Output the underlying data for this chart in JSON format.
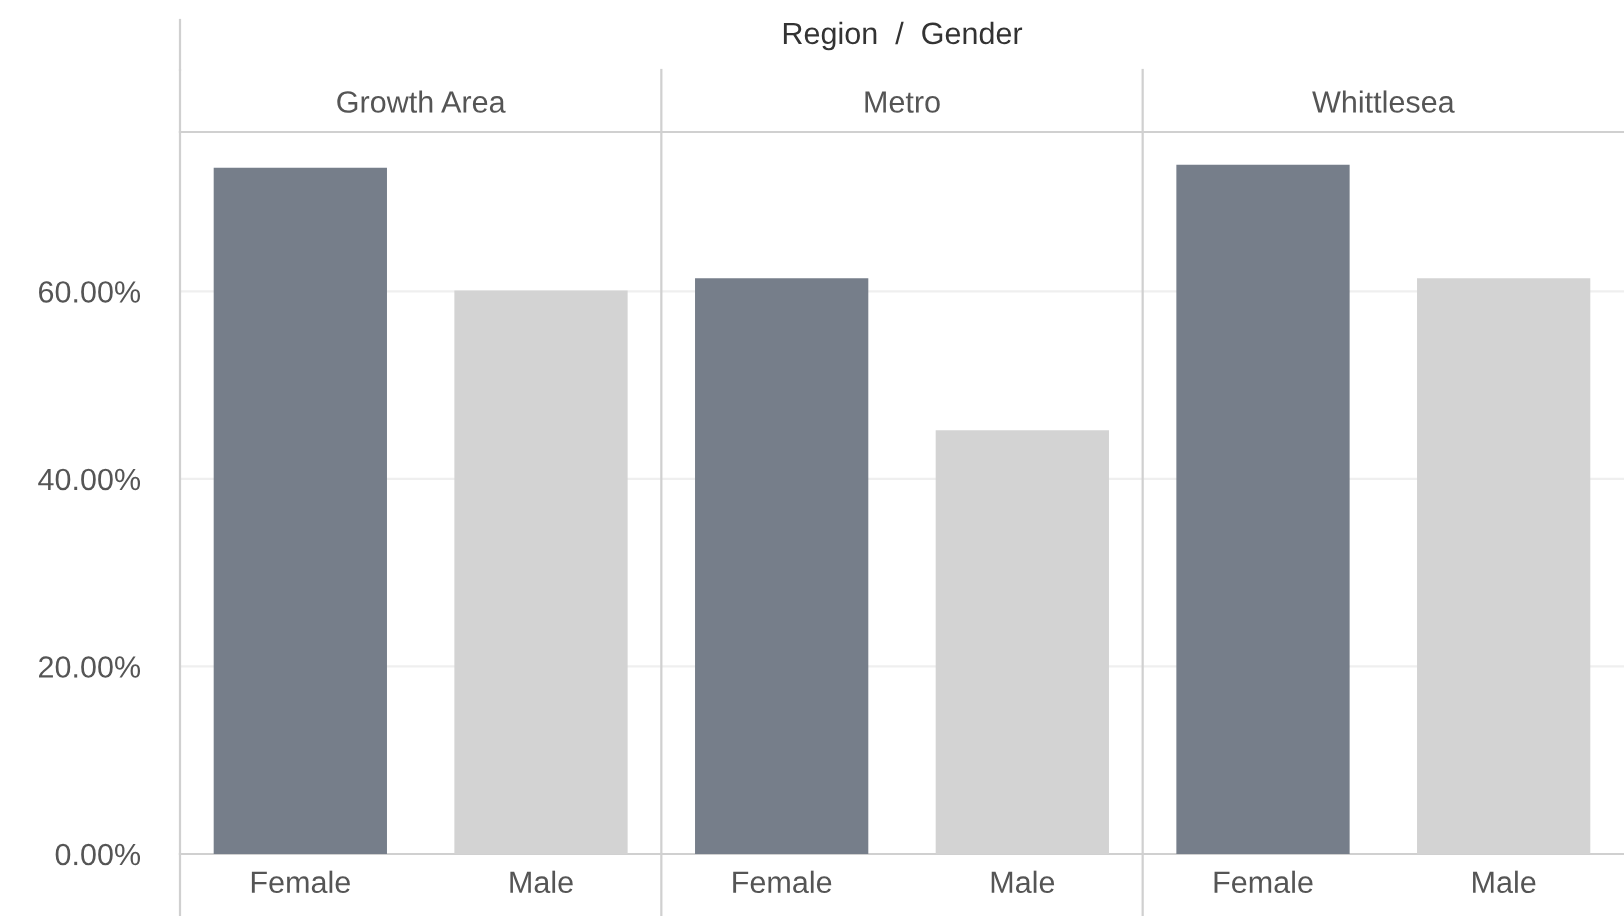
{
  "chart_data": [
    {
      "type": "bar",
      "title": "Growth Area",
      "annotations": [
        "Region  /  Gender"
      ],
      "categories": [
        "Female",
        "Male"
      ],
      "values": [
        73.2,
        60.1
      ],
      "colors": [
        "#767e8a",
        "#d3d3d3"
      ],
      "ylim": [
        0,
        77
      ],
      "yticks": [
        {
          "value": 0,
          "label": "0.00%"
        },
        {
          "value": 20,
          "label": "20.00%"
        },
        {
          "value": 40,
          "label": "40.00%"
        },
        {
          "value": 60,
          "label": "60.00%"
        }
      ],
      "grid": "y"
    },
    {
      "type": "bar",
      "title": "Metro",
      "categories": [
        "Female",
        "Male"
      ],
      "values": [
        61.4,
        45.2
      ],
      "colors": [
        "#767e8a",
        "#d3d3d3"
      ],
      "ylim": [
        0,
        77
      ],
      "yticks": [
        {
          "value": 0,
          "label": null
        },
        {
          "value": 20,
          "label": null
        },
        {
          "value": 40,
          "label": null
        },
        {
          "value": 60,
          "label": null
        }
      ],
      "grid": "y",
      "tick_labels": "x"
    },
    {
      "type": "bar",
      "title": "Whittlesea",
      "categories": [
        "Female",
        "Male"
      ],
      "values": [
        73.5,
        61.4
      ],
      "colors": [
        "#767e8a",
        "#d3d3d3"
      ],
      "ylim": [
        0,
        77
      ],
      "yticks": [
        {
          "value": 0,
          "label": null
        },
        {
          "value": 20,
          "label": null
        },
        {
          "value": 40,
          "label": null
        },
        {
          "value": 60,
          "label": null
        }
      ],
      "grid": "y",
      "tick_labels": "x"
    }
  ]
}
